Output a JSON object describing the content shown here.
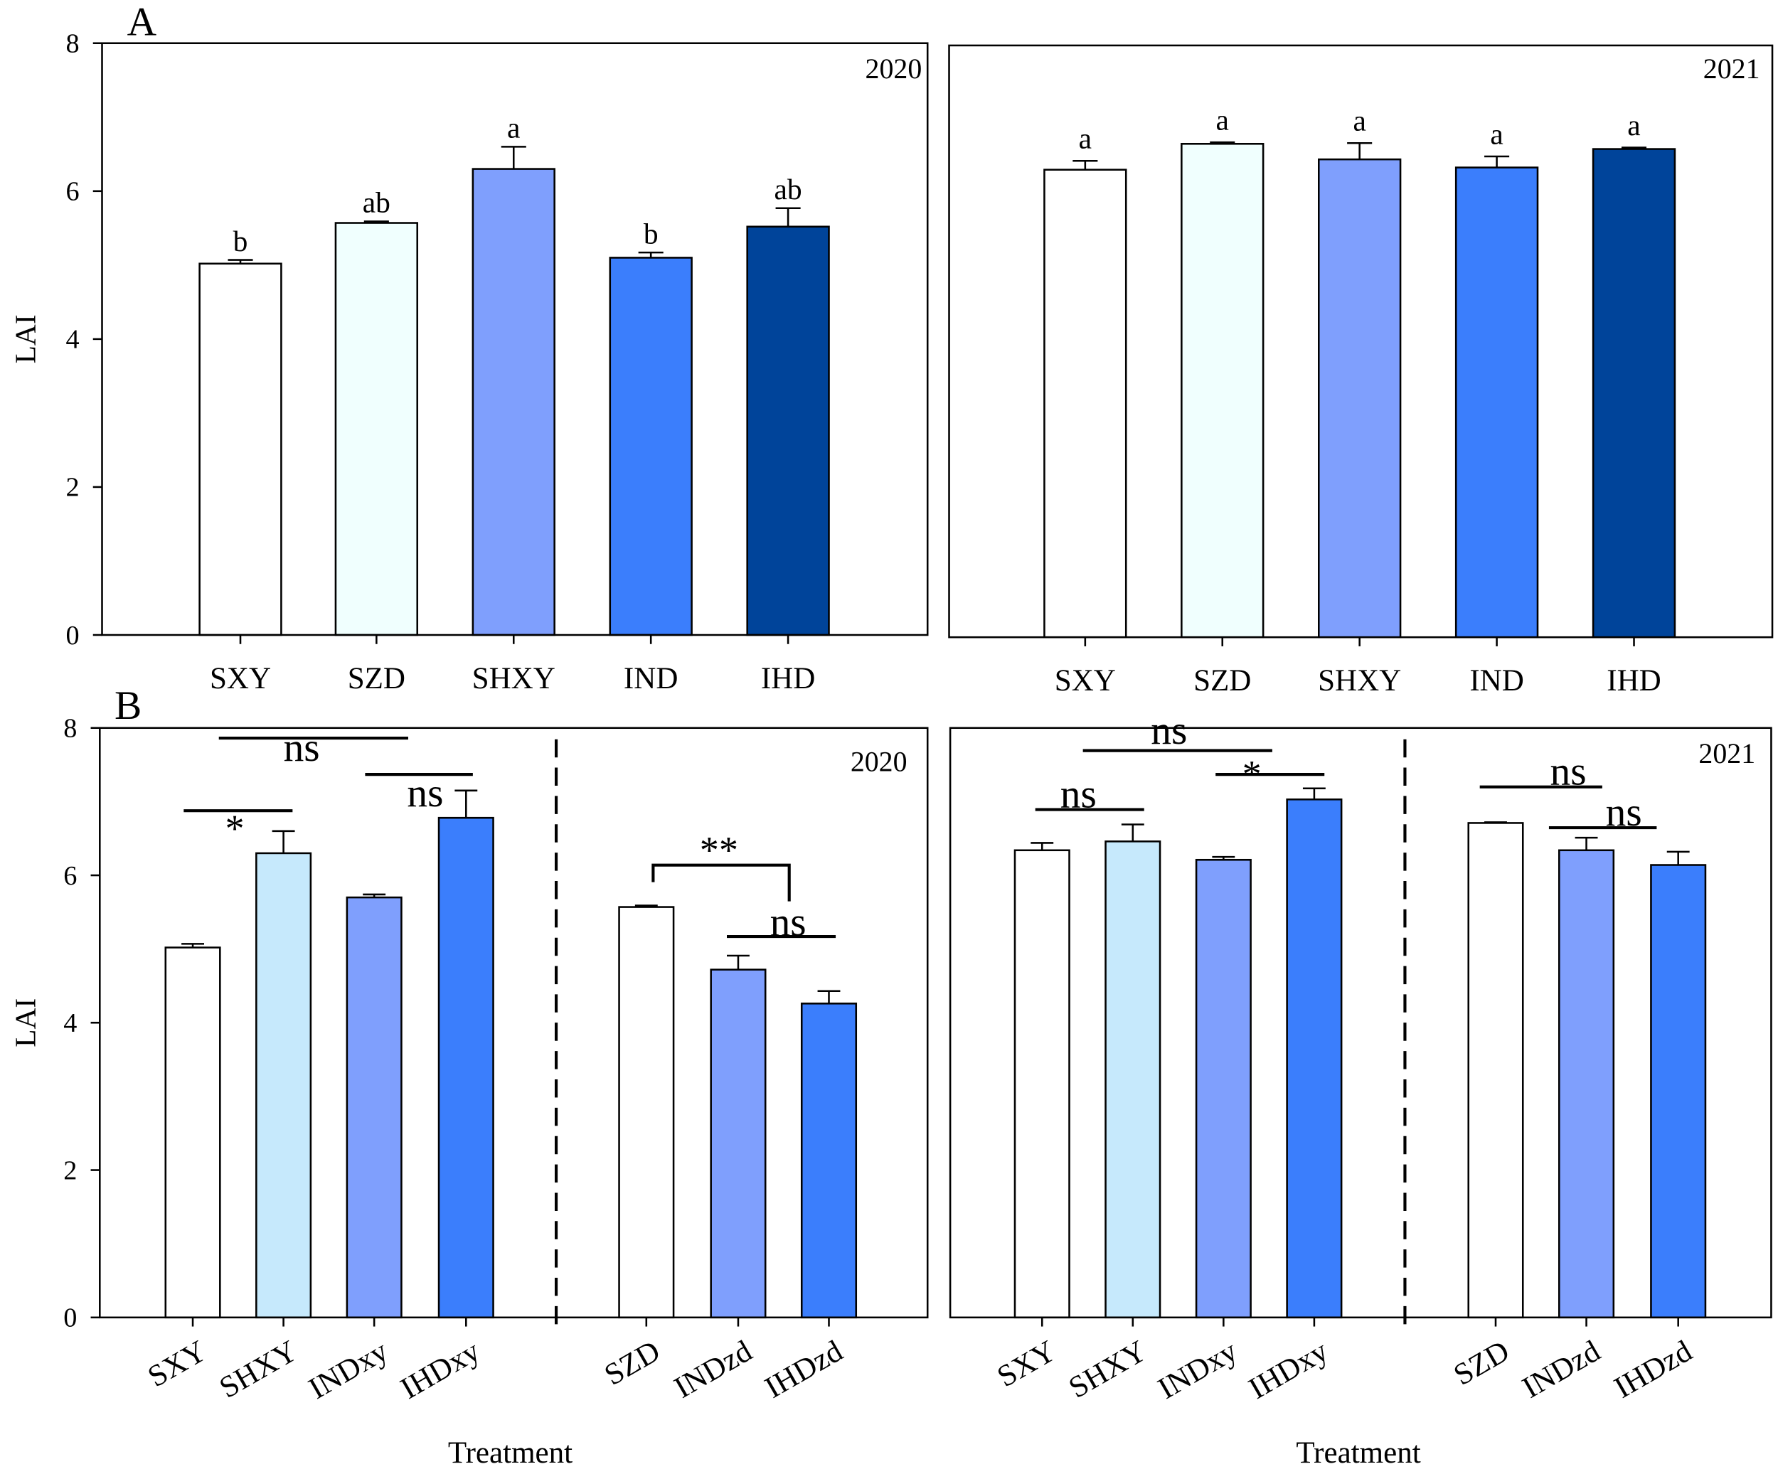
{
  "figure": {
    "panel_labels": [
      "A",
      "B"
    ]
  },
  "chart_data": [
    {
      "type": "bar",
      "year": "2020",
      "ylabel": "LAI",
      "ylim": [
        0,
        8
      ],
      "yticks": [
        0,
        2,
        4,
        6,
        8
      ],
      "categories": [
        "SXY",
        "SZD",
        "SHXY",
        "IND",
        "IHD"
      ],
      "values": [
        5.02,
        5.57,
        6.3,
        5.1,
        5.52
      ],
      "errors": [
        0.05,
        0.02,
        0.3,
        0.07,
        0.25
      ],
      "letters": [
        "b",
        "ab",
        "a",
        "b",
        "ab"
      ],
      "colors": [
        "#ffffff",
        "#f0fffe",
        "#7f9ffd",
        "#3b7efc",
        "#00449a"
      ]
    },
    {
      "type": "bar",
      "year": "2021",
      "ylim": [
        0,
        8
      ],
      "categories": [
        "SXY",
        "SZD",
        "SHXY",
        "IND",
        "IHD"
      ],
      "values": [
        6.32,
        6.67,
        6.46,
        6.35,
        6.6
      ],
      "errors": [
        0.12,
        0.02,
        0.22,
        0.15,
        0.02
      ],
      "letters": [
        "a",
        "a",
        "a",
        "a",
        "a"
      ],
      "colors": [
        "#ffffff",
        "#f0fffe",
        "#7f9ffd",
        "#3b7efc",
        "#00449a"
      ]
    },
    {
      "type": "bar",
      "year": "2020",
      "xlabel": "Treatment",
      "ylabel": "LAI",
      "ylim": [
        0,
        8
      ],
      "yticks": [
        0,
        2,
        4,
        6,
        8
      ],
      "categories": [
        "SXY",
        "SHXY",
        "INDxy",
        "IHDxy",
        "SZD",
        "INDzd",
        "IHDzd"
      ],
      "group_sizes": [
        4,
        3
      ],
      "values": [
        5.02,
        6.3,
        5.7,
        6.78,
        5.57,
        4.72,
        4.26
      ],
      "errors": [
        0.05,
        0.3,
        0.04,
        0.37,
        0.02,
        0.19,
        0.17
      ],
      "significance": [
        "*",
        "ns",
        "ns",
        "**",
        "ns"
      ],
      "colors": [
        "#ffffff",
        "#c6e9fc",
        "#7f9ffd",
        "#3b7efc",
        "#ffffff",
        "#7f9ffd",
        "#3b7efc"
      ]
    },
    {
      "type": "bar",
      "year": "2021",
      "xlabel": "Treatment",
      "ylim": [
        0,
        8
      ],
      "categories": [
        "SXY",
        "SHXY",
        "INDxy",
        "IHDxy",
        "SZD",
        "INDzd",
        "IHDzd"
      ],
      "group_sizes": [
        4,
        3
      ],
      "values": [
        6.34,
        6.46,
        6.21,
        7.03,
        6.71,
        6.34,
        6.14
      ],
      "errors": [
        0.1,
        0.23,
        0.04,
        0.15,
        0.01,
        0.17,
        0.18
      ],
      "significance": [
        "ns",
        "ns",
        "*",
        "ns",
        "ns"
      ],
      "colors": [
        "#ffffff",
        "#c6e9fc",
        "#7f9ffd",
        "#3b7efc",
        "#ffffff",
        "#7f9ffd",
        "#3b7efc"
      ]
    }
  ]
}
